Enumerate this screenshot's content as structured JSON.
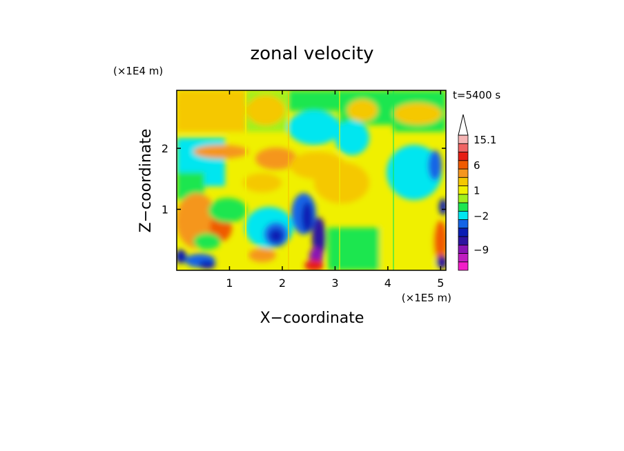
{
  "chart_data": {
    "type": "heatmap",
    "title": "zonal velocity",
    "xlabel": "X−coordinate",
    "ylabel": "Z−coordinate",
    "x_unit": "(×1E5 m)",
    "y_unit": "(×1E4 m)",
    "time_label": "t=5400 s",
    "xlim": [
      0,
      5.1
    ],
    "ylim": [
      0,
      2.95
    ],
    "x_ticks": [
      {
        "value": 1,
        "label": "1"
      },
      {
        "value": 2,
        "label": "2"
      },
      {
        "value": 3,
        "label": "3"
      },
      {
        "value": 4,
        "label": "4"
      },
      {
        "value": 5,
        "label": "5"
      }
    ],
    "y_ticks": [
      {
        "value": 1,
        "label": "1"
      },
      {
        "value": 2,
        "label": "2"
      }
    ],
    "colorbar": {
      "levels": [
        {
          "label": "",
          "color": "#f21ec8"
        },
        {
          "label": "",
          "color": "#c01ec0"
        },
        {
          "label": "−9",
          "color": "#8a14b4"
        },
        {
          "label": "",
          "color": "#2d14a0"
        },
        {
          "label": "",
          "color": "#0a1eb4"
        },
        {
          "label": "",
          "color": "#1465e6"
        },
        {
          "label": "−2",
          "color": "#00e6f0"
        },
        {
          "label": "",
          "color": "#1ee650"
        },
        {
          "label": "",
          "color": "#a0f01e"
        },
        {
          "label": "1",
          "color": "#f0f000"
        },
        {
          "label": "",
          "color": "#f5c800"
        },
        {
          "label": "",
          "color": "#f5961e"
        },
        {
          "label": "6",
          "color": "#f05a00"
        },
        {
          "label": "",
          "color": "#e61e14"
        },
        {
          "label": "",
          "color": "#f06464"
        },
        {
          "label": "15.1",
          "color": "#f5b4b4"
        }
      ]
    }
  }
}
